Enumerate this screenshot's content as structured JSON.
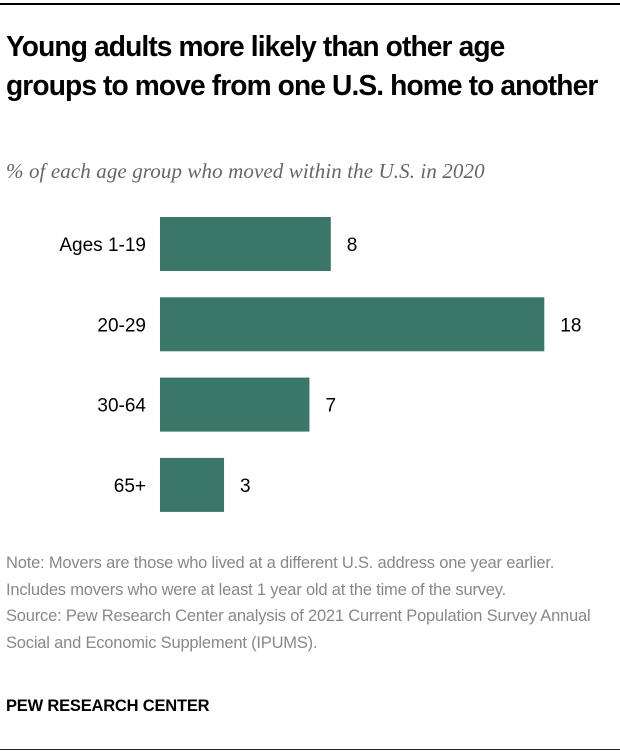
{
  "chart_data": {
    "type": "bar",
    "orientation": "horizontal",
    "title": "Young adults more likely than other age groups to move from one U.S. home to another",
    "subtitle": "% of each age group who moved within the U.S. in 2020",
    "categories": [
      "Ages 1-19",
      "20-29",
      "30-64",
      "65+"
    ],
    "values": [
      8,
      18,
      7,
      3
    ],
    "value_labels": [
      "8",
      "18",
      "7",
      "3"
    ],
    "xlabel": "",
    "ylabel": "",
    "xlim": [
      0,
      18
    ],
    "grid": false,
    "legend": null,
    "bar_color": "#3a7768"
  },
  "note": "Note: Movers are those who lived at a different U.S. address one year earlier. Includes movers who were at least 1 year old at the time of the survey.",
  "source": "Source: Pew Research Center analysis of 2021 Current Population Survey Annual Social and Economic Supplement (IPUMS).",
  "brand": "PEW RESEARCH CENTER"
}
